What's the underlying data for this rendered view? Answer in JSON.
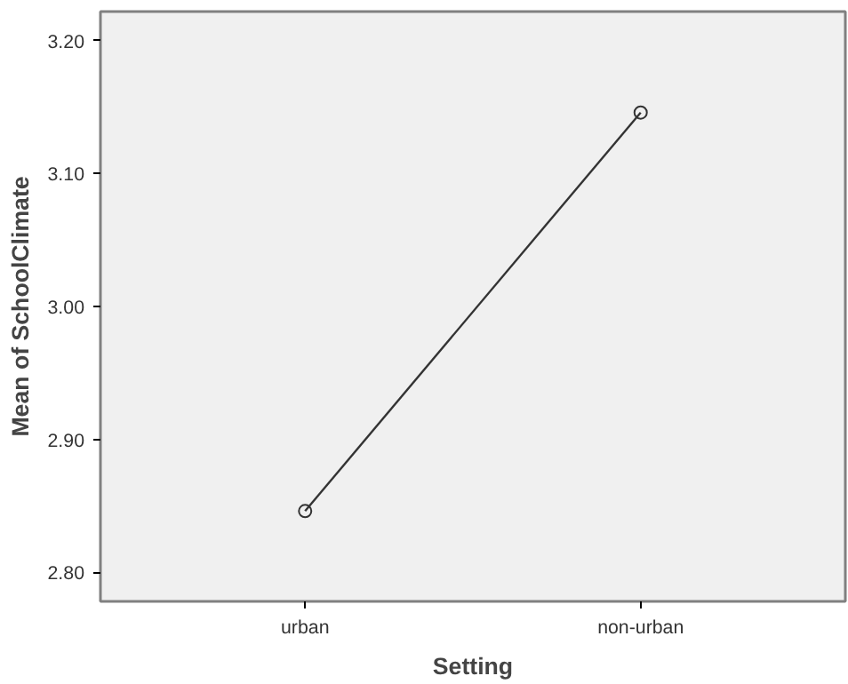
{
  "chart_data": {
    "type": "line",
    "xlabel": "Setting",
    "ylabel": "Mean of SchoolClimate",
    "categories": [
      "urban",
      "non-urban"
    ],
    "series": [
      {
        "color": "#333333",
        "values": [
          2.846,
          3.146
        ]
      }
    ],
    "ylim": [
      2.778,
      3.222
    ],
    "yticks": [
      {
        "value": 2.8,
        "label": "2.80"
      },
      {
        "value": 2.9,
        "label": "2.90"
      },
      {
        "value": 3.0,
        "label": "3.00"
      },
      {
        "value": 3.1,
        "label": "3.10"
      },
      {
        "value": 3.2,
        "label": "3.20"
      }
    ],
    "marker": "circle",
    "line_style": "solid",
    "grid": false
  }
}
